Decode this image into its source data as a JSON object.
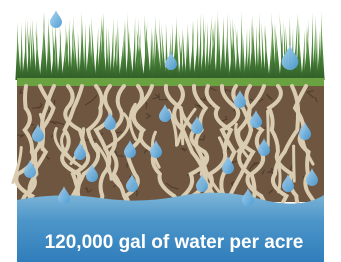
{
  "caption": "120,000 gal of water per acre"
}
